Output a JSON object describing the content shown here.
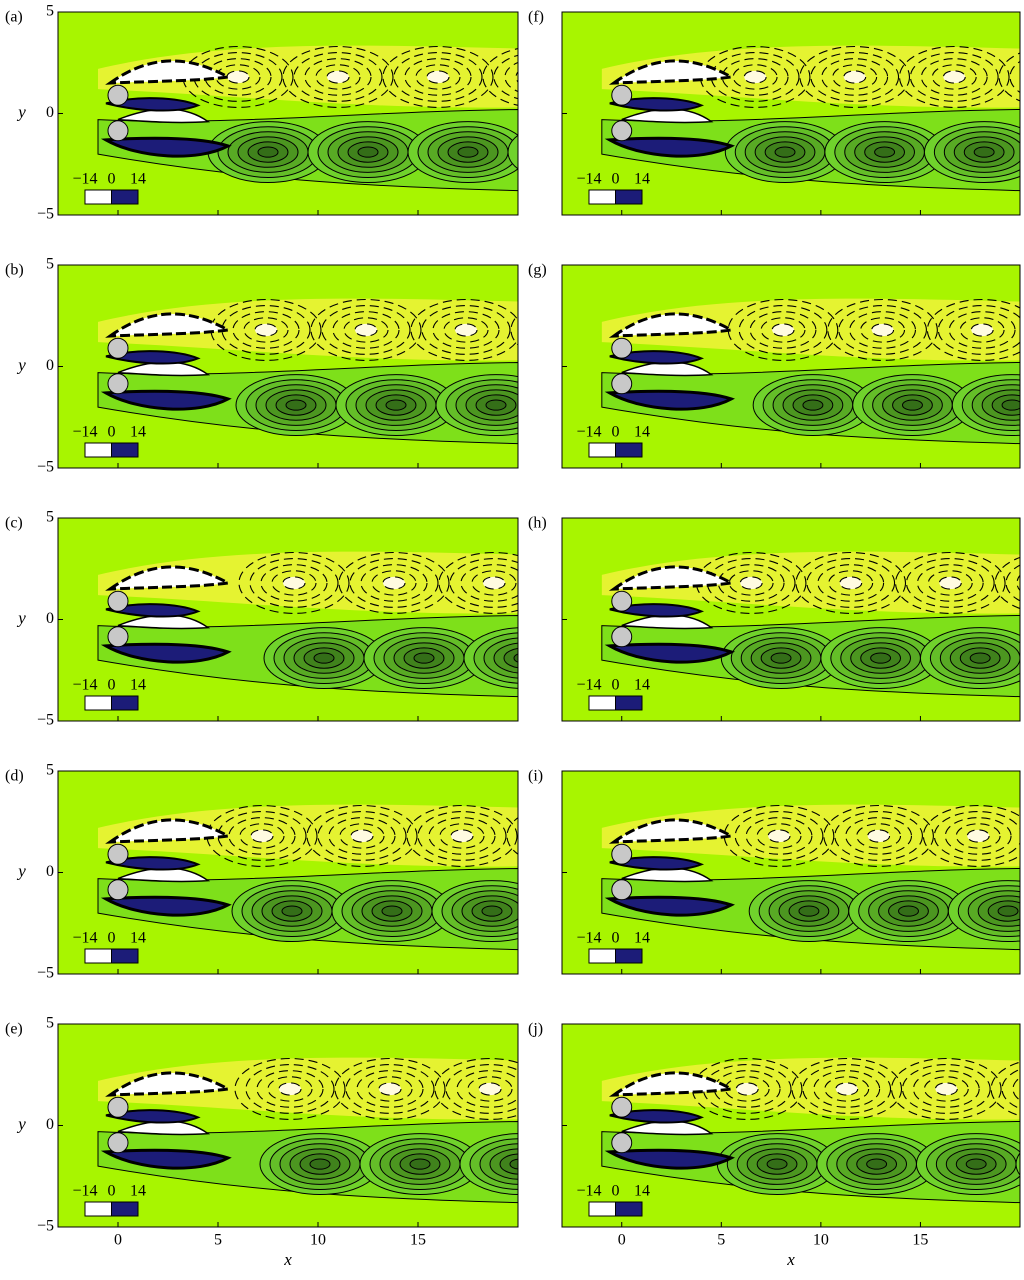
{
  "chart_data": [
    {
      "type": "contour",
      "title": "(a)",
      "ylabel": "y",
      "xlim": [
        -3,
        20
      ],
      "ylim": [
        -5,
        5
      ],
      "xticks": [
        0,
        5,
        10,
        15
      ],
      "yticks": [
        {
          "value": -5,
          "label": "−5"
        },
        0,
        5
      ],
      "colorbar": {
        "ticks": [
          {
            "value": -14,
            "label": "−14"
          },
          0,
          14
        ],
        "colors": [
          "#ffffff",
          "#1c1c78"
        ]
      }
    },
    {
      "type": "contour",
      "title": "(f)",
      "xlim": [
        -3,
        20
      ],
      "ylim": [
        -5,
        5
      ],
      "xticks": [
        0,
        5,
        10,
        15
      ],
      "yticks": [
        -5,
        0,
        5
      ],
      "colorbar": {
        "ticks": [
          {
            "value": -14,
            "label": "−14"
          },
          0,
          14
        ],
        "colors": [
          "#ffffff",
          "#1c1c78"
        ]
      }
    },
    {
      "type": "contour",
      "title": "(b)",
      "ylabel": "y",
      "xlim": [
        -3,
        20
      ],
      "ylim": [
        -5,
        5
      ],
      "xticks": [
        0,
        5,
        10,
        15
      ],
      "yticks": [
        {
          "value": -5,
          "label": "−5"
        },
        0,
        5
      ],
      "colorbar": {
        "ticks": [
          {
            "value": -14,
            "label": "−14"
          },
          0,
          14
        ],
        "colors": [
          "#ffffff",
          "#1c1c78"
        ]
      }
    },
    {
      "type": "contour",
      "title": "(g)",
      "xlim": [
        -3,
        20
      ],
      "ylim": [
        -5,
        5
      ],
      "xticks": [
        0,
        5,
        10,
        15
      ],
      "yticks": [
        -5,
        0,
        5
      ],
      "colorbar": {
        "ticks": [
          {
            "value": -14,
            "label": "−14"
          },
          0,
          14
        ],
        "colors": [
          "#ffffff",
          "#1c1c78"
        ]
      }
    },
    {
      "type": "contour",
      "title": "(c)",
      "ylabel": "y",
      "xlim": [
        -3,
        20
      ],
      "ylim": [
        -5,
        5
      ],
      "xticks": [
        0,
        5,
        10,
        15
      ],
      "yticks": [
        {
          "value": -5,
          "label": "−5"
        },
        0,
        5
      ],
      "colorbar": {
        "ticks": [
          {
            "value": -14,
            "label": "−14"
          },
          0,
          14
        ],
        "colors": [
          "#ffffff",
          "#1c1c78"
        ]
      }
    },
    {
      "type": "contour",
      "title": "(h)",
      "xlim": [
        -3,
        20
      ],
      "ylim": [
        -5,
        5
      ],
      "xticks": [
        0,
        5,
        10,
        15
      ],
      "yticks": [
        -5,
        0,
        5
      ],
      "colorbar": {
        "ticks": [
          {
            "value": -14,
            "label": "−14"
          },
          0,
          14
        ],
        "colors": [
          "#ffffff",
          "#1c1c78"
        ]
      }
    },
    {
      "type": "contour",
      "title": "(d)",
      "ylabel": "y",
      "xlim": [
        -3,
        20
      ],
      "ylim": [
        -5,
        5
      ],
      "xticks": [
        0,
        5,
        10,
        15
      ],
      "yticks": [
        {
          "value": -5,
          "label": "−5"
        },
        0,
        5
      ],
      "colorbar": {
        "ticks": [
          {
            "value": -14,
            "label": "−14"
          },
          0,
          14
        ],
        "colors": [
          "#ffffff",
          "#1c1c78"
        ]
      }
    },
    {
      "type": "contour",
      "title": "(i)",
      "xlim": [
        -3,
        20
      ],
      "ylim": [
        -5,
        5
      ],
      "xticks": [
        0,
        5,
        10,
        15
      ],
      "yticks": [
        -5,
        0,
        5
      ],
      "colorbar": {
        "ticks": [
          {
            "value": -14,
            "label": "−14"
          },
          0,
          14
        ],
        "colors": [
          "#ffffff",
          "#1c1c78"
        ]
      }
    },
    {
      "type": "contour",
      "title": "(e)",
      "ylabel": "y",
      "xlabel": "x",
      "xlim": [
        -3,
        20
      ],
      "ylim": [
        -5,
        5
      ],
      "xticks": [
        0,
        5,
        10,
        15
      ],
      "yticks": [
        {
          "value": -5,
          "label": "−5"
        },
        0,
        5
      ],
      "colorbar": {
        "ticks": [
          {
            "value": -14,
            "label": "−14"
          },
          0,
          14
        ],
        "colors": [
          "#ffffff",
          "#1c1c78"
        ]
      }
    },
    {
      "type": "contour",
      "title": "(j)",
      "xlabel": "x",
      "xlim": [
        -3,
        20
      ],
      "ylim": [
        -5,
        5
      ],
      "xticks": [
        0,
        5,
        10,
        15
      ],
      "yticks": [
        -5,
        0,
        5
      ],
      "colorbar": {
        "ticks": [
          {
            "value": -14,
            "label": "−14"
          },
          0,
          14
        ],
        "colors": [
          "#ffffff",
          "#1c1c78"
        ]
      }
    }
  ]
}
